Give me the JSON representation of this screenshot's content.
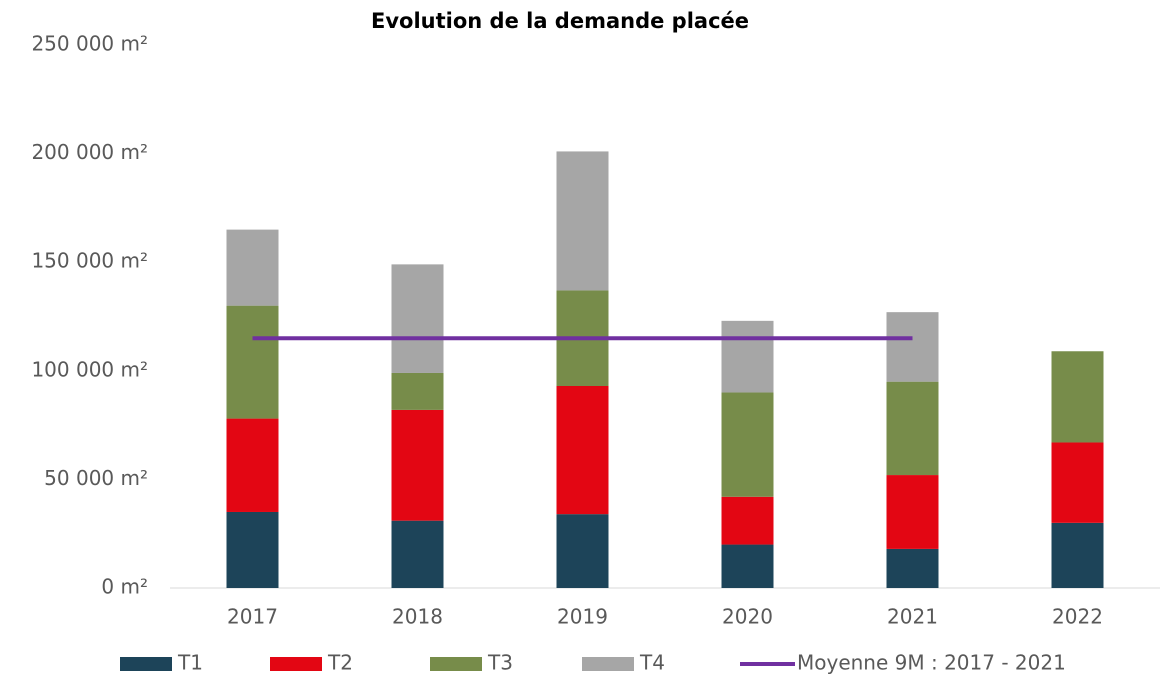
{
  "chart_data": {
    "type": "bar",
    "title": "Evolution de la demande placée",
    "categories": [
      "2017",
      "2018",
      "2019",
      "2020",
      "2021",
      "2022"
    ],
    "series": [
      {
        "name": "T1",
        "color": "#1d4459",
        "values": [
          35000,
          31000,
          34000,
          20000,
          18000,
          30000
        ]
      },
      {
        "name": "T2",
        "color": "#e30613",
        "values": [
          43000,
          51000,
          59000,
          22000,
          34000,
          37000
        ]
      },
      {
        "name": "T3",
        "color": "#778c4a",
        "values": [
          52000,
          17000,
          44000,
          48000,
          43000,
          42000
        ]
      },
      {
        "name": "T4",
        "color": "#a6a6a6",
        "values": [
          35000,
          50000,
          64000,
          33000,
          32000,
          null
        ]
      },
      {
        "name": "Moyenne 9M : 2017 - 2021",
        "color": "#7030a0",
        "type": "line",
        "values": [
          115000,
          115000,
          115000,
          115000,
          115000,
          null
        ]
      }
    ],
    "ylim": [
      0,
      250000
    ],
    "yticks": [
      {
        "value": 0,
        "label": "0 m²"
      },
      {
        "value": 50000,
        "label": "50 000 m²"
      },
      {
        "value": 100000,
        "label": "100 000 m²"
      },
      {
        "value": 150000,
        "label": "150 000 m²"
      },
      {
        "value": 200000,
        "label": "200 000 m²"
      },
      {
        "value": 250000,
        "label": "250 000 m²"
      }
    ],
    "grid": false,
    "legend": "bottom"
  }
}
